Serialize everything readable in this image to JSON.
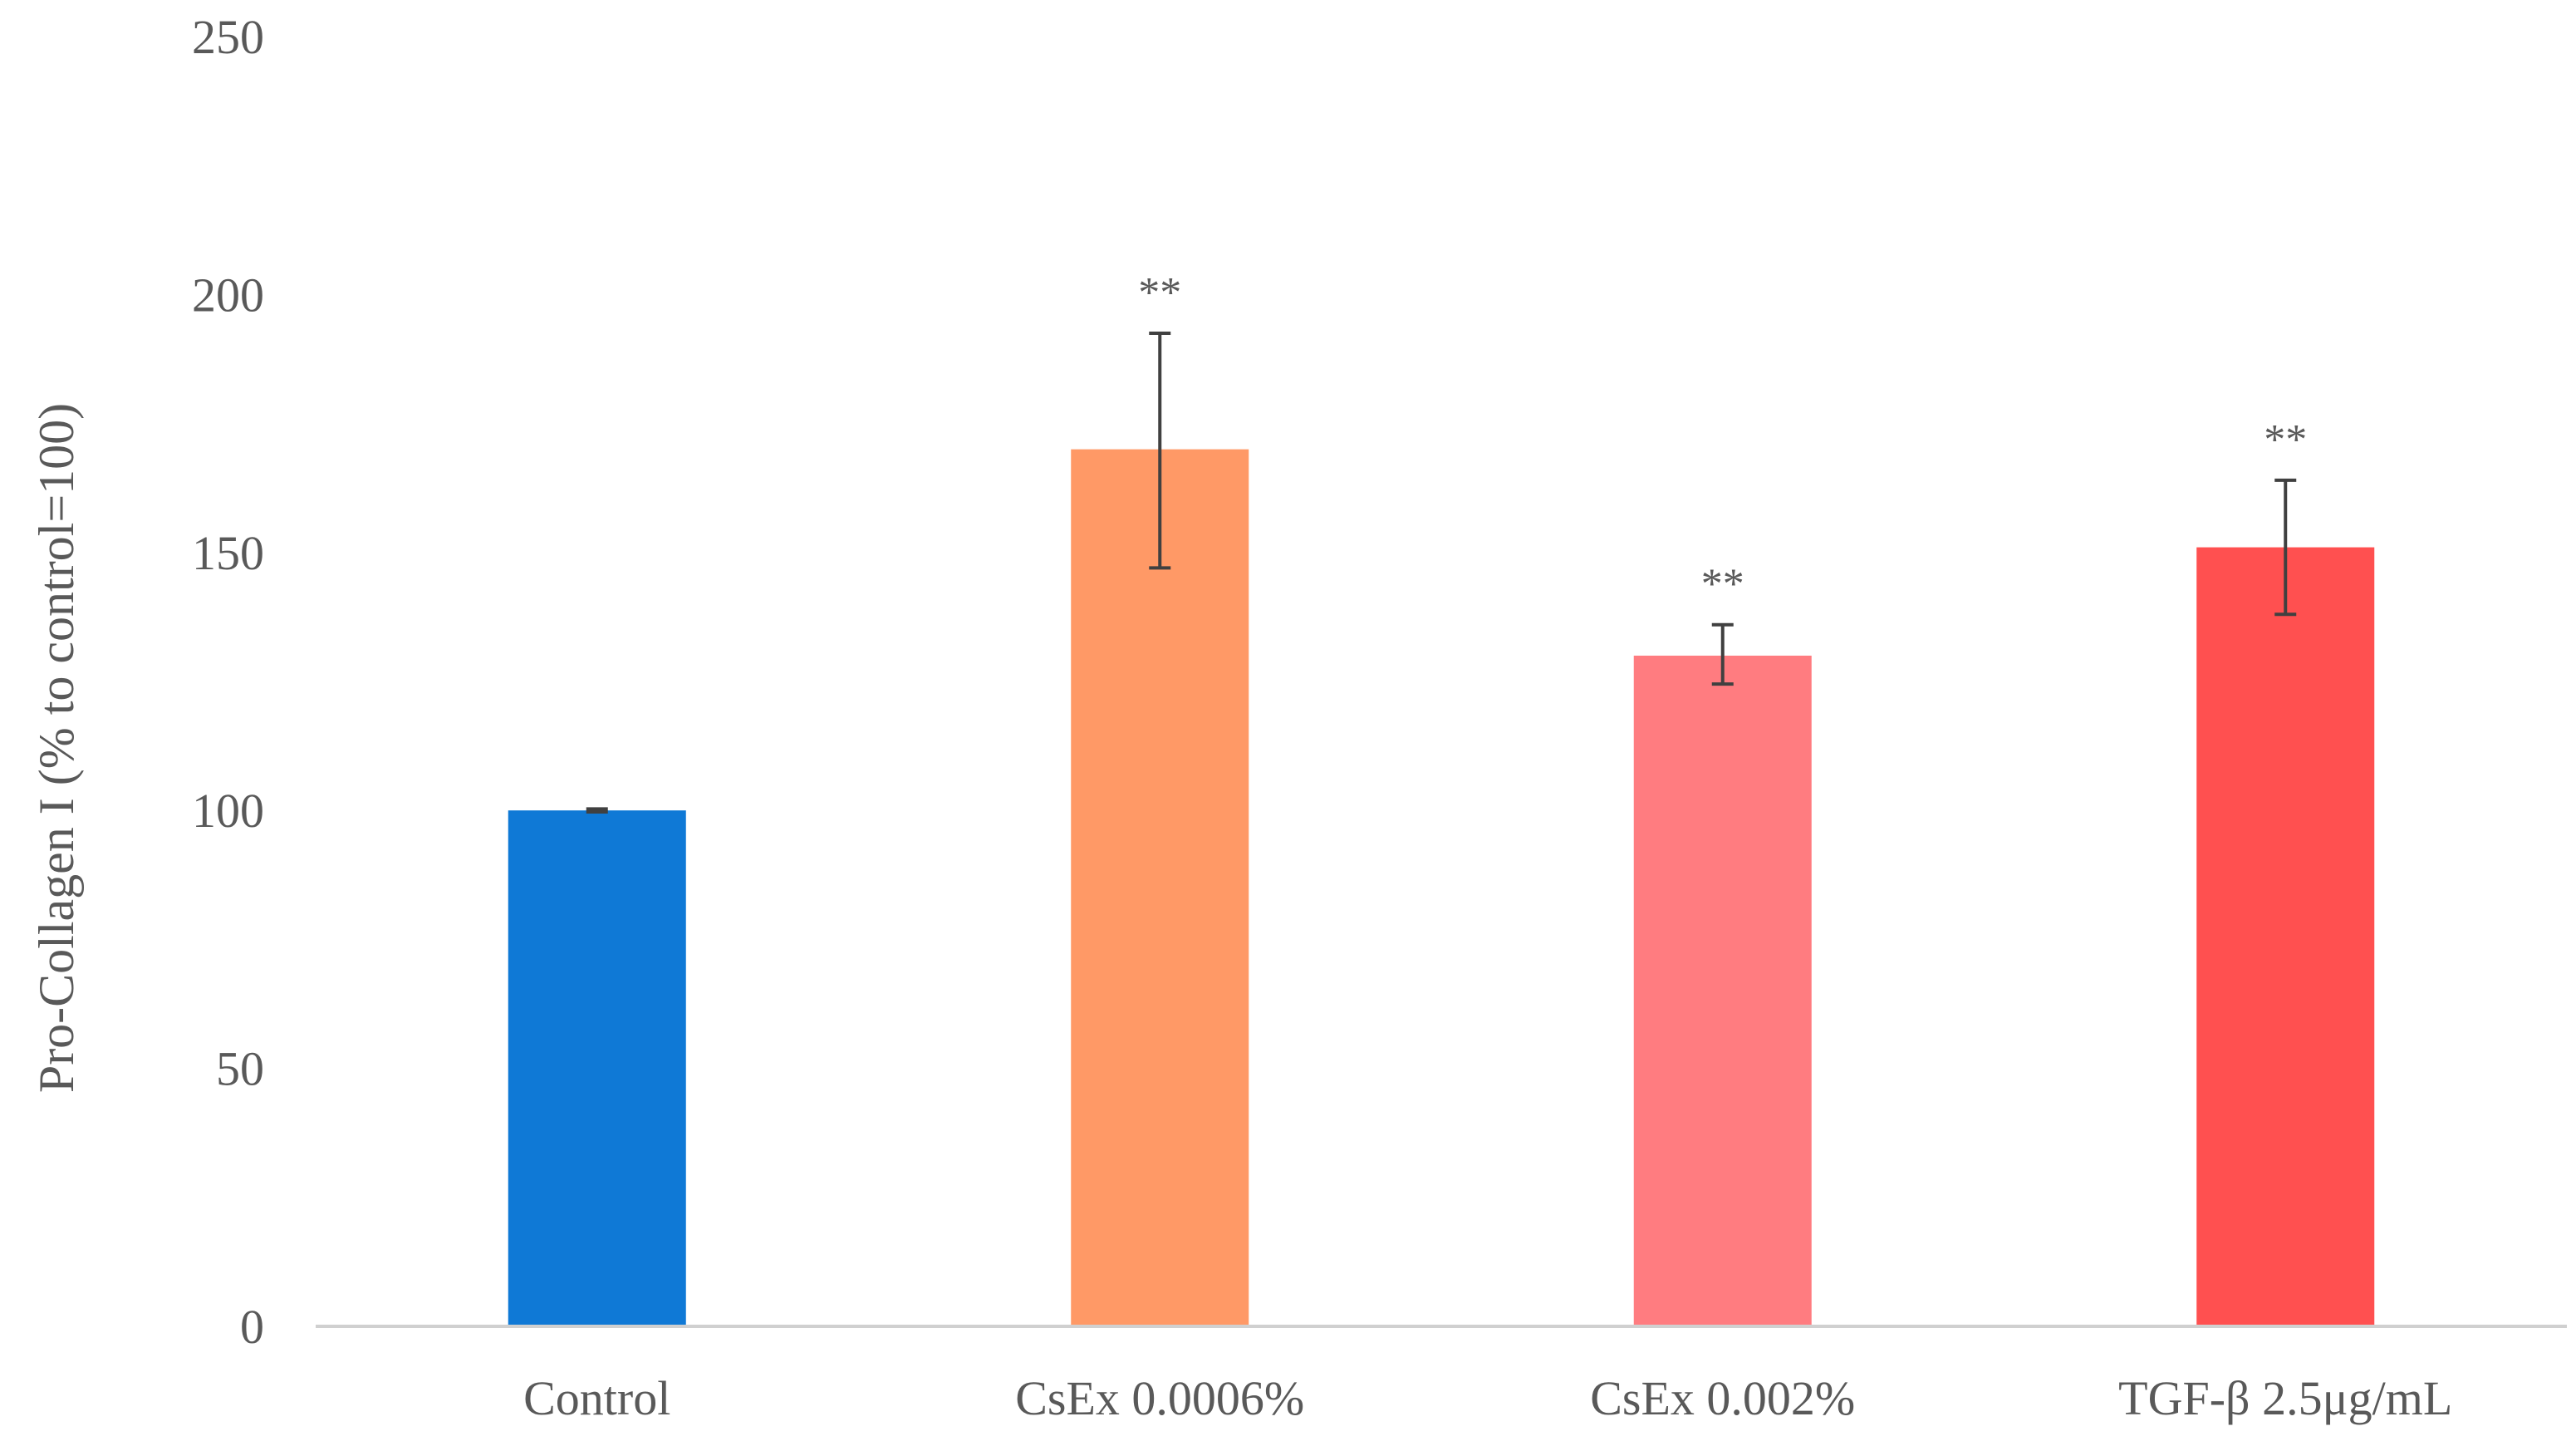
{
  "chart_data": {
    "type": "bar",
    "title": "",
    "xlabel": "",
    "ylabel": "Pro-Collagen I (% to control=100)",
    "ylim": [
      0,
      250
    ],
    "yticks": [
      0,
      50,
      100,
      150,
      200,
      250
    ],
    "grid": false,
    "legend": "none",
    "categories": [
      "Control",
      "CsEx 0.0006%",
      "CsEx 0.002%",
      "TGF-β 2.5μg/mL"
    ],
    "values": [
      100,
      170,
      130,
      151
    ],
    "error_low": [
      99.7,
      147,
      124.5,
      138
    ],
    "error_high": [
      100.3,
      192.5,
      136,
      164
    ],
    "annotations": [
      "",
      "**",
      "**",
      "**"
    ],
    "colors": [
      "#0F79D6",
      "#FF9966",
      "#FF7C80",
      "#FF5050"
    ]
  }
}
